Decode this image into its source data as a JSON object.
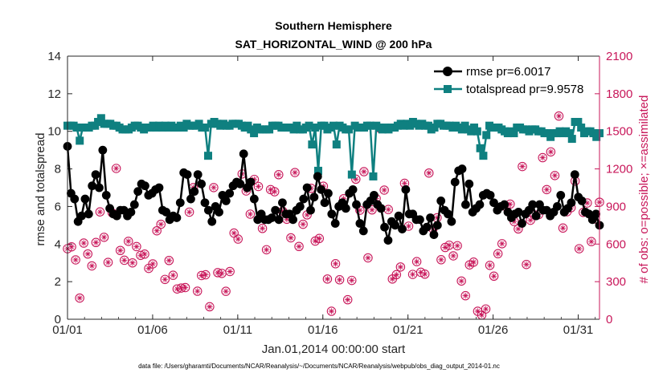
{
  "chart_data": {
    "type": "line",
    "title_line1": "Southern Hemisphere",
    "title_line2": "SAT_HORIZONTAL_WIND @ 200 hPa",
    "xlabel": "Jan.01,2014 00:00:00 start",
    "ylabel_left": "rmse and totalspread",
    "ylabel_right": "# of obs: o=possible; ×=assimilated",
    "footnote": "data file: /Users/gharamti/Documents/NCAR/Reanalysis/~/Documents/NCAR/Reanalysis/webpub/obs_diag_output_2014-01.nc",
    "xlim": [
      1,
      32.25
    ],
    "ylim_left": [
      0,
      14
    ],
    "ylim_right": [
      0,
      2100
    ],
    "x_ticks": [
      1,
      6,
      11,
      16,
      21,
      26,
      31
    ],
    "x_tick_labels": [
      "01/01",
      "01/06",
      "01/11",
      "01/16",
      "01/21",
      "01/26",
      "01/31"
    ],
    "y_ticks_left": [
      "0",
      "2",
      "4",
      "6",
      "8",
      "10",
      "12",
      "14"
    ],
    "y_ticks_right": [
      "0",
      "300",
      "600",
      "900",
      "1200",
      "1500",
      "1800",
      "2100"
    ],
    "colors": {
      "rmse": "#000000",
      "spread": "#0f8080",
      "obs": "#c8175a",
      "axis": "#262626"
    },
    "legend": [
      {
        "label": "rmse pr=6.0017"
      },
      {
        "label": "totalspread pr=9.9578"
      }
    ],
    "series": [
      {
        "name": "rmse",
        "axis": "left",
        "values": [
          9.2,
          6.7,
          6.4,
          5.2,
          5.5,
          6.4,
          5.6,
          7.1,
          7.7,
          7.0,
          9.0,
          6.6,
          5.9,
          5.6,
          5.5,
          5.8,
          5.8,
          5.5,
          5.7,
          6.1,
          6.8,
          7.2,
          7.1,
          6.6,
          6.7,
          6.9,
          7.0,
          5.8,
          5.7,
          5.3,
          5.5,
          5.4,
          6.2,
          7.8,
          7.7,
          6.4,
          6.8,
          7.7,
          7.2,
          6.2,
          5.8,
          5.2,
          6.0,
          5.7,
          6.6,
          6.3,
          6.7,
          7.1,
          7.3,
          7.2,
          8.8,
          7.0,
          7.3,
          6.4,
          5.3,
          5.6,
          5.3,
          5.3,
          5.4,
          5.8,
          5.3,
          6.2,
          5.6,
          5.6,
          5.3,
          5.8,
          6.0,
          6.4,
          7.0,
          5.8,
          6.5,
          7.6,
          6.9,
          6.2,
          6.7,
          5.6,
          5.1,
          6.0,
          6.2,
          5.9,
          6.7,
          6.9,
          6.1,
          5.1,
          4.7,
          6.1,
          6.3,
          6.6,
          6.1,
          5.9,
          4.9,
          4.2,
          5.2,
          5.0,
          5.5,
          4.8,
          6.9,
          5.6,
          5.6,
          5.3,
          5.3,
          4.7,
          4.9,
          5.4,
          4.5,
          5.0,
          6.3,
          5.8,
          5.6,
          5.2,
          7.3,
          7.9,
          8.0,
          6.1,
          7.2,
          5.7,
          5.9,
          6.1,
          6.6,
          6.7,
          6.6,
          6.2,
          5.8,
          6.0,
          6.1,
          5.7,
          5.4,
          5.6,
          5.7,
          5.1,
          5.6,
          5.8,
          6.1,
          5.5,
          6.1,
          5.8,
          5.8,
          5.5,
          5.7,
          6.0,
          6.6,
          5.7,
          5.9,
          6.2,
          7.7,
          6.5,
          6.3,
          5.7,
          5.6,
          5.3,
          5.6,
          5.0
        ]
      },
      {
        "name": "totalspread",
        "axis": "left",
        "values": [
          10.3,
          10.3,
          10.3,
          10.2,
          9.5,
          10.2,
          10.2,
          10.2,
          10.3,
          10.3,
          10.5,
          10.7,
          10.4,
          10.4,
          10.4,
          10.3,
          10.3,
          10.2,
          10.1,
          10.1,
          10.1,
          10.2,
          10.3,
          10.3,
          10.2,
          10.1,
          10.2,
          10.2,
          10.3,
          10.2,
          10.3,
          10.2,
          10.3,
          10.2,
          10.3,
          10.2,
          10.2,
          10.3,
          10.2,
          10.4,
          10.3,
          10.3,
          10.3,
          10.4,
          10.2,
          10.2,
          8.7,
          10.4,
          10.5,
          10.4,
          10.3,
          10.4,
          10.3,
          10.3,
          10.4,
          10.4,
          10.4,
          10.3,
          10.2,
          10.3,
          10.1,
          9.9,
          10.2,
          10.1,
          10.1,
          10.1,
          10.1,
          10.3,
          10.3,
          10.3,
          10.2,
          10.2,
          10.2,
          10.2,
          10.1,
          10.3,
          10.1,
          10.1,
          10.2,
          10.3,
          9.3,
          10.2,
          7.9,
          10.3,
          10.3,
          10.1,
          10.2,
          10.3,
          9.3,
          10.3,
          10.2,
          10.1,
          10.1,
          7.7,
          10.3,
          10.2,
          10.2,
          10.2,
          10.3,
          10.3,
          7.6,
          10.3,
          10.2,
          10.1,
          10.2,
          10.1,
          10.2,
          10.2,
          10.3,
          10.4,
          10.3,
          10.4,
          10.3,
          10.5,
          10.4,
          10.3,
          10.4,
          10.3,
          10.3,
          10.1,
          10.2,
          10.4,
          10.4,
          10.3,
          10.3,
          10.3,
          10.2,
          10.3,
          10.2,
          10.1,
          10.3,
          10.1,
          10.0,
          10.2,
          10.0,
          9.1,
          8.7,
          9.8,
          10.3,
          10.2,
          10.2,
          10.2,
          10.1,
          10.0,
          9.9,
          10.0,
          9.9,
          10.2,
          10.2,
          10.1,
          10.1,
          10.0,
          10.1,
          10.1,
          10.0,
          10.0,
          9.9,
          9.9,
          9.7,
          9.9,
          9.9,
          10.0,
          9.9,
          10.0,
          9.9,
          9.6,
          10.5,
          10.5,
          10.2,
          9.9,
          10.0,
          10.0,
          9.9,
          9.7,
          9.9
        ]
      },
      {
        "name": "obs_possible",
        "axis": "right",
        "values": [
          563,
          578,
          474,
          169,
          608,
          521,
          426,
          613,
          857,
          654,
          454,
          849,
          1204,
          549,
          471,
          622,
          450,
          580,
          510,
          520,
          406,
          442,
          706,
          758,
          318,
          469,
          351,
          242,
          249,
          253,
          855,
          1051,
          224,
          349,
          355,
          100,
          1051,
          372,
          366,
          223,
          381,
          688,
          640,
          1160,
          1024,
          839,
          1116,
          1060,
          725,
          555,
          1035,
          1018,
          1154,
          862,
          798,
          650,
          1171,
          581,
          758,
          833,
          1045,
          624,
          645,
          1062,
          321,
          64,
          443,
          315,
          962,
          156,
          310,
          1118,
          870,
          1178,
          490,
          873,
          964,
          1523,
          1031,
          876,
          321,
          356,
          417,
          1085,
          743,
          358,
          460,
          375,
          360,
          1167,
          722,
          810,
          475,
          573,
          591,
          506,
          587,
          305,
          188,
          434,
          456,
          64,
          33,
          82,
          430,
          344,
          523,
          603,
          898,
          919,
          780,
          721,
          1219,
          437,
          790,
          832,
          835,
          1290,
          1035,
          1336,
          1147,
          1622,
          728,
          858,
          890,
          1103,
          563,
          853,
          928,
          620,
          800,
          934
        ]
      }
    ]
  }
}
